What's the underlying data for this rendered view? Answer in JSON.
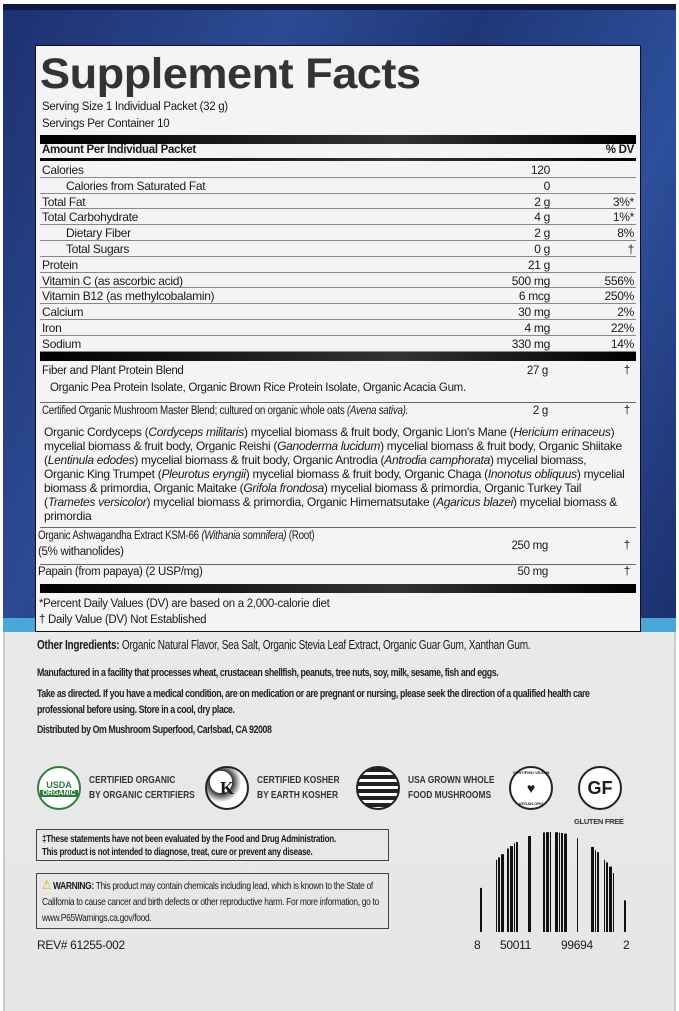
{
  "title": "Supplement Facts",
  "serving_size": "Serving Size 1 Individual Packet (32 g)",
  "servings_per_container": "Servings Per Container 10",
  "header": {
    "amount": "Amount Per Individual Packet",
    "dv": "% DV"
  },
  "nutrients": [
    {
      "name": "Calories",
      "value": "120",
      "dv": "",
      "indent": false
    },
    {
      "name": "Calories from Saturated Fat",
      "value": "0",
      "dv": "",
      "indent": true
    },
    {
      "name": "Total Fat",
      "value": "2 g",
      "dv": "3%*",
      "indent": false
    },
    {
      "name": "Total Carbohydrate",
      "value": "4 g",
      "dv": "1%*",
      "indent": false
    },
    {
      "name": "Dietary Fiber",
      "value": "2 g",
      "dv": "8%",
      "indent": true
    },
    {
      "name": "Total Sugars",
      "value": "0 g",
      "dv": "†",
      "indent": true
    },
    {
      "name": "Protein",
      "value": "21 g",
      "dv": "",
      "indent": false
    },
    {
      "name": "Vitamin C (as ascorbic acid)",
      "value": "500 mg",
      "dv": "556%",
      "indent": false
    },
    {
      "name": "Vitamin B12 (as methylcobalamin)",
      "value": "6 mcg",
      "dv": "250%",
      "indent": false
    },
    {
      "name": "Calcium",
      "value": "30 mg",
      "dv": "2%",
      "indent": false
    },
    {
      "name": "Iron",
      "value": "4 mg",
      "dv": "22%",
      "indent": false
    },
    {
      "name": "Sodium",
      "value": "330 mg",
      "dv": "14%",
      "indent": false
    }
  ],
  "fiber_blend": {
    "name": "Fiber and Plant Protein Blend",
    "value": "27 g",
    "dv": "†",
    "ingredients": "Organic Pea Protein Isolate, Organic Brown Rice Protein Isolate, Organic Acacia Gum."
  },
  "mushroom_blend": {
    "name": "Certified Organic Mushroom Master Blend; cultured on organic whole oats ",
    "name_italic": "(Avena sativa).",
    "value": "2 g",
    "dv": "†",
    "ingredients": [
      [
        "Organic Cordyceps (",
        0
      ],
      [
        "Cordyceps militaris",
        1
      ],
      [
        ") mycelial biomass & fruit body, Organic Lion's Mane (",
        0
      ],
      [
        "Hericium erinaceus",
        1
      ],
      [
        ") mycelial biomass & fruit body, Organic Reishi (",
        0
      ],
      [
        "Ganoderma lucidum",
        1
      ],
      [
        ") mycelial biomass & fruit body, Organic Shiitake (",
        0
      ],
      [
        "Lentinula edodes",
        1
      ],
      [
        ") mycelial biomass & fruit body, Organic Antrodia (",
        0
      ],
      [
        "Antrodia camphorata",
        1
      ],
      [
        ") mycelial biomass, Organic King Trumpet (",
        0
      ],
      [
        "Pleurotus eryngii",
        1
      ],
      [
        ") mycelial biomass & fruit body, Organic Chaga (",
        0
      ],
      [
        "Inonotus obliquus",
        1
      ],
      [
        ") mycelial biomass & primordia, Organic Maitake (",
        0
      ],
      [
        "Grifola frondosa",
        1
      ],
      [
        ") mycelial biomass & primordia, Organic Turkey Tail (",
        0
      ],
      [
        "Trametes versicolor",
        1
      ],
      [
        ") mycelial biomass & primordia, Organic Himematsutake (",
        0
      ],
      [
        "Agaricus blazei",
        1
      ],
      [
        ") mycelial biomass & primordia",
        0
      ]
    ]
  },
  "ashwagandha": {
    "name": "Organic Ashwagandha Extract KSM-66 ",
    "name_italic": "(Withania somnifera)",
    "name_end": " (Root)",
    "line2": "(5% withanolides)",
    "value": "250 mg",
    "dv": "†"
  },
  "papain": {
    "name": "Papain (from papaya) (2 USP/mg)",
    "value": "50 mg",
    "dv": "†"
  },
  "footnotes": [
    "*Percent Daily Values (DV) are based on a 2,000-calorie diet",
    "† Daily Value (DV) Not Established"
  ],
  "other_ingredients": {
    "label": "Other Ingredients:",
    "text": " Organic Natural Flavor, Sea Salt, Organic Stevia Leaf Extract, Organic Guar Gum, Xanthan Gum."
  },
  "allergen": "Manufactured in a facility that processes wheat, crustacean shellfish, peanuts, tree nuts, soy, milk, sesame, fish and eggs.",
  "directions": "Take as directed. If you have a medical condition, are on medication or are pregnant or nursing, please seek the direction of a qualified health care professional before using. Store in a cool, dry place.",
  "distributor": "Distributed by Om Mushroom Superfood, Carlsbad, CA 92008",
  "certifications": [
    {
      "icon": "usda-organic-icon",
      "logo_text": [
        "USDA",
        "ORGANIC"
      ],
      "lines": [
        "CERTIFIED ORGANIC",
        "BY ORGANIC CERTIFIERS"
      ]
    },
    {
      "icon": "earth-kosher-icon",
      "logo_text": [
        "K"
      ],
      "lines": [
        "CERTIFIED KOSHER",
        "BY EARTH KOSHER"
      ]
    },
    {
      "icon": "usa-flag-icon",
      "lines": [
        "USA GROWN WHOLE",
        "FOOD MUSHROOMS"
      ]
    },
    {
      "icon": "certified-vegan-icon",
      "logo_text": [
        "CERTIFIED VEGAN",
        "VEGAN.ORG"
      ]
    },
    {
      "icon": "gluten-free-icon",
      "logo_text": [
        "GF"
      ],
      "caption": "GLUTEN FREE"
    }
  ],
  "fda_disclaimer": [
    "‡These statements have not been evaluated by the Food and Drug Administration.",
    "This product is not intended to diagnose, treat, cure or prevent any disease."
  ],
  "warning": {
    "label": "WARNING:",
    "text": " This product may contain chemicals including lead, which is known to the State of California to cause cancer and birth defects or other reproductive harm. For more information, go to www.P65Warnings.ca.gov/food."
  },
  "rev": "REV# 61255-002",
  "barcode": {
    "digits": [
      "8",
      "50011",
      "99694",
      "2"
    ]
  },
  "colors": {
    "band": "#243e86",
    "stripe": "#4aa8d8",
    "usda_green": "#2e7d3a"
  }
}
